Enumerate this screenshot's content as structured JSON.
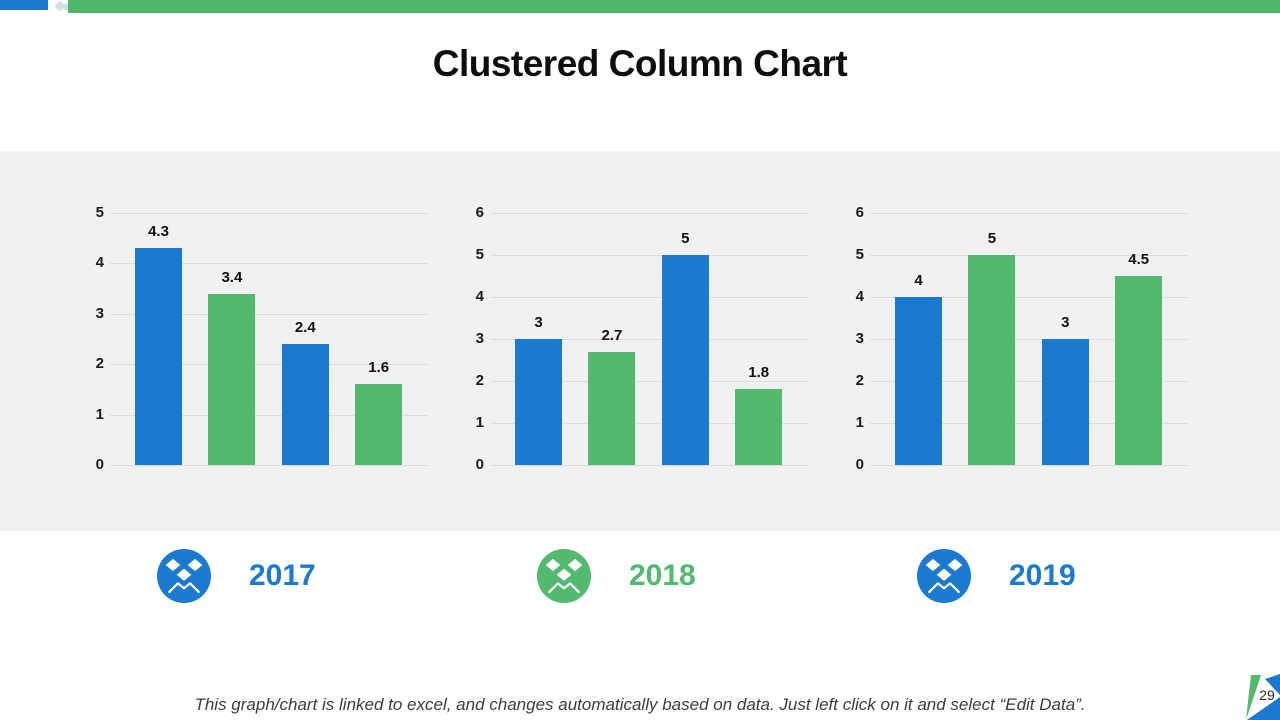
{
  "slide": {
    "title": "Clustered Column Chart",
    "footer_note": "This graph/chart is linked to excel, and changes automatically based on data. Just left click on it and select “Edit Data”.",
    "page_number": "29"
  },
  "colors": {
    "blue": "#1B7AD0",
    "green": "#52B96E",
    "accent_blue_bar": "#1B7AD0",
    "accent_green_bar": "#4FB66B",
    "band_bg": "#F0F1F0",
    "gridline": "#DCDCDC",
    "title_text": "#0E0E0E",
    "footer_text": "#3D3D3D"
  },
  "legend": [
    {
      "label": "2017",
      "color_key": "blue",
      "icon": "dropbox-icon"
    },
    {
      "label": "2018",
      "color_key": "green",
      "icon": "dropbox-icon"
    },
    {
      "label": "2019",
      "color_key": "blue",
      "icon": "dropbox-icon"
    }
  ],
  "chart_data": [
    {
      "type": "bar",
      "name": "2017",
      "categories": [
        "",
        "",
        "",
        ""
      ],
      "values": [
        4.3,
        3.4,
        2.4,
        1.6
      ],
      "data_labels": [
        "4.3",
        "3.4",
        "2.4",
        "1.6"
      ],
      "bar_color_keys": [
        "blue",
        "green",
        "blue",
        "green"
      ],
      "ylim": [
        0,
        5
      ],
      "yticks": [
        0,
        1,
        2,
        3,
        4,
        5
      ],
      "grid": true,
      "xlabel": "",
      "ylabel": "",
      "legend_position": "below-slide"
    },
    {
      "type": "bar",
      "name": "2018",
      "categories": [
        "",
        "",
        "",
        ""
      ],
      "values": [
        3,
        2.7,
        5,
        1.8
      ],
      "data_labels": [
        "3",
        "2.7",
        "5",
        "1.8"
      ],
      "bar_color_keys": [
        "blue",
        "green",
        "blue",
        "green"
      ],
      "ylim": [
        0,
        6
      ],
      "yticks": [
        0,
        1,
        2,
        3,
        4,
        5,
        6
      ],
      "grid": true,
      "xlabel": "",
      "ylabel": "",
      "legend_position": "below-slide"
    },
    {
      "type": "bar",
      "name": "2019",
      "categories": [
        "",
        "",
        "",
        ""
      ],
      "values": [
        4,
        5,
        3,
        4.5
      ],
      "data_labels": [
        "4",
        "5",
        "3",
        "4.5"
      ],
      "bar_color_keys": [
        "blue",
        "green",
        "blue",
        "green"
      ],
      "ylim": [
        0,
        6
      ],
      "yticks": [
        0,
        1,
        2,
        3,
        4,
        5,
        6
      ],
      "grid": true,
      "xlabel": "",
      "ylabel": "",
      "legend_position": "below-slide"
    }
  ]
}
